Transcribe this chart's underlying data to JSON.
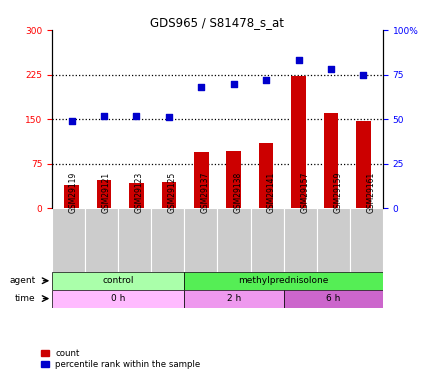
{
  "title": "GDS965 / S81478_s_at",
  "samples": [
    "GSM29119",
    "GSM29121",
    "GSM29123",
    "GSM29125",
    "GSM29137",
    "GSM29138",
    "GSM29141",
    "GSM29157",
    "GSM29159",
    "GSM29161"
  ],
  "bar_values": [
    40,
    47,
    42,
    45,
    95,
    97,
    110,
    222,
    160,
    147
  ],
  "dot_values": [
    49,
    52,
    52,
    51,
    68,
    70,
    72,
    83,
    78,
    75
  ],
  "bar_color": "#cc0000",
  "dot_color": "#0000cc",
  "left_ylim": [
    0,
    300
  ],
  "right_ylim": [
    0,
    100
  ],
  "left_yticks": [
    0,
    75,
    150,
    225,
    300
  ],
  "right_yticks": [
    0,
    25,
    50,
    75,
    100
  ],
  "right_yticklabels": [
    "0",
    "25",
    "50",
    "75",
    "100%"
  ],
  "hlines": [
    75,
    150,
    225
  ],
  "agent_labels": [
    {
      "text": "control",
      "color": "#aaffaa",
      "start": 0,
      "end": 4
    },
    {
      "text": "methylprednisolone",
      "color": "#55ee55",
      "start": 4,
      "end": 10
    }
  ],
  "time_labels": [
    {
      "text": "0 h",
      "color": "#ffbbff",
      "start": 0,
      "end": 4
    },
    {
      "text": "2 h",
      "color": "#ee99ee",
      "start": 4,
      "end": 7
    },
    {
      "text": "6 h",
      "color": "#cc66cc",
      "start": 7,
      "end": 10
    }
  ],
  "legend_items": [
    {
      "label": "count",
      "color": "#cc0000"
    },
    {
      "label": "percentile rank within the sample",
      "color": "#0000cc"
    }
  ],
  "agent_row_label": "agent",
  "time_row_label": "time",
  "bar_width": 0.45,
  "tick_label_fontsize": 6.5,
  "sample_label_bg": "#cccccc"
}
